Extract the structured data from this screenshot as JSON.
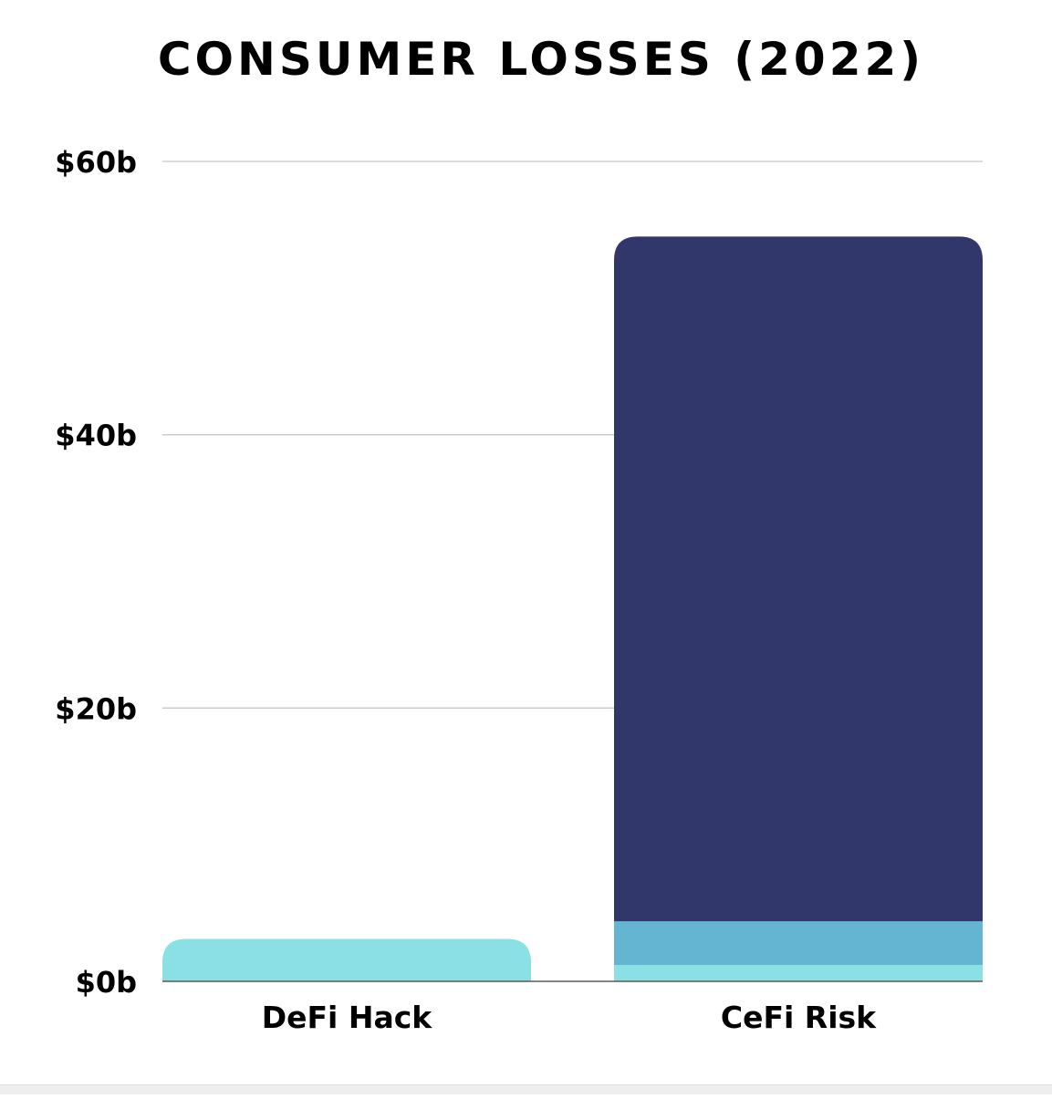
{
  "chart_data": {
    "type": "bar",
    "title": "CONSUMER LOSSES (2022)",
    "categories": [
      "DeFi Hack",
      "CeFi Risk"
    ],
    "series": [
      {
        "color": "#8ae0e4",
        "values": [
          3.1,
          1.2
        ]
      },
      {
        "color": "#63b5d1",
        "values": [
          0,
          3.2
        ]
      },
      {
        "color": "#31376a",
        "values": [
          0,
          50.1
        ]
      }
    ],
    "y_ticks": [
      0,
      20,
      40,
      60
    ],
    "y_tick_labels": [
      "$0b",
      "$20b",
      "$40b",
      "$60b"
    ],
    "ylim": [
      0,
      60
    ],
    "xlabel": "",
    "ylabel": "",
    "grid": true,
    "legend": false
  }
}
